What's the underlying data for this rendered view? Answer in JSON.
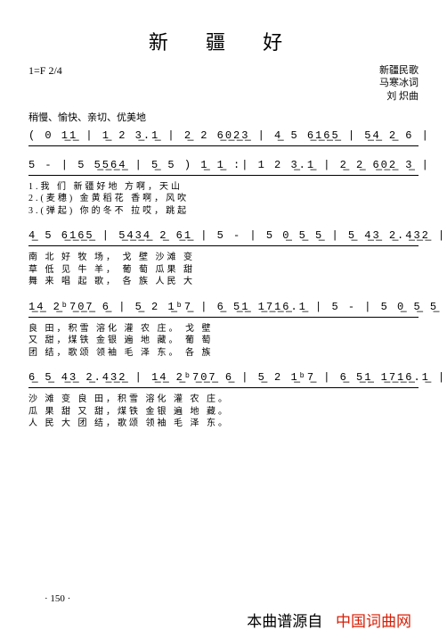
{
  "title": "新 疆 好",
  "key_time": "1=F 2/4",
  "credits": {
    "line1": "新疆民歌",
    "line2": "马寒冰词",
    "line3": "刘 炽曲"
  },
  "tempo": "稍慢、愉快、亲切、优美地",
  "systems": [
    {
      "music": "( 0 1̲1̲ | 1̲ 2  3̲.1̲ | 2̲ 2  6̲0̲2̲3̲ | 4̲ 5  6̲1̲6̲5̲ | 5̲4̲  2̲ 6 |",
      "lyrics": []
    },
    {
      "music": "5  -  | 5  5̲5̲6̲4̲ | 5̲ 5 ) 1̲ 1̲ :| 1  2  3̲.1̲ | 2̲ 2̲ 6̲0̲2̲ 3̲ |",
      "lyrics": [
        "                    1.我  们   新疆好地   方啊，天山",
        "                    2.(麦穗)  金黄稻花   香啊，风吹",
        "                    3.(弹起)  你的冬不   拉哎，跳起"
      ]
    },
    {
      "music": "4̲ 5 6̲1̲6̲5̲ | 5̲4̲3̲4̲ 2̲ 6̲1̲ | 5  -  | 5  0̲ 5̲ 5̲ | 5̲ 4̲3̲  2̲.4̲3̲2̲ |",
      "lyrics": [
        "南 北 好     牧         场，           戈 壁   沙滩  变",
        "草 低 见     牛         羊，           葡 萄   瓜果  甜",
        "舞 来 唱     起         歌，           各 族   人民  大"
      ]
    },
    {
      "music": "1̲4̲ 2̲ᵇ7̲0̲7̲ 6̲ | 5̲ 2  1̲ᵇ7̲ | 6̲ 5̲1̲ 1̲7̲1̲6̲.1̲ | 5  -  | 5  0̲ 5̲ 5̲ |",
      "lyrics": [
        "良 田，积雪   溶化 灌    农          庄。           戈 壁",
        "又 甜，煤铁   金银 遍    地          藏。           葡 萄",
        "团 结，歌颂   领袖 毛    泽          东。           各 族"
      ]
    },
    {
      "music": "6̲ 5̲ 4̲3̲  2̲.4̲3̲2̲ | 1̲4̲ 2̲ᵇ7̲0̲7̲ 6̲ | 5̲ 2  1̲ᵇ7̲ | 6̲ 5̲1̲ 1̲7̲1̲6̲.1̲ | 5  -  :|",
      "lyrics": [
        "沙 滩  变     良 田，积雪  溶化 灌    农          庄。",
        "瓜 果  甜     又 甜，煤铁  金银 遍    地          藏。",
        "人 民  大     团 结，歌颂  领袖 毛    泽          东。"
      ]
    }
  ],
  "page_number": "· 150 ·",
  "footer": {
    "src": "本曲谱源自",
    "site": "中国词曲网"
  }
}
